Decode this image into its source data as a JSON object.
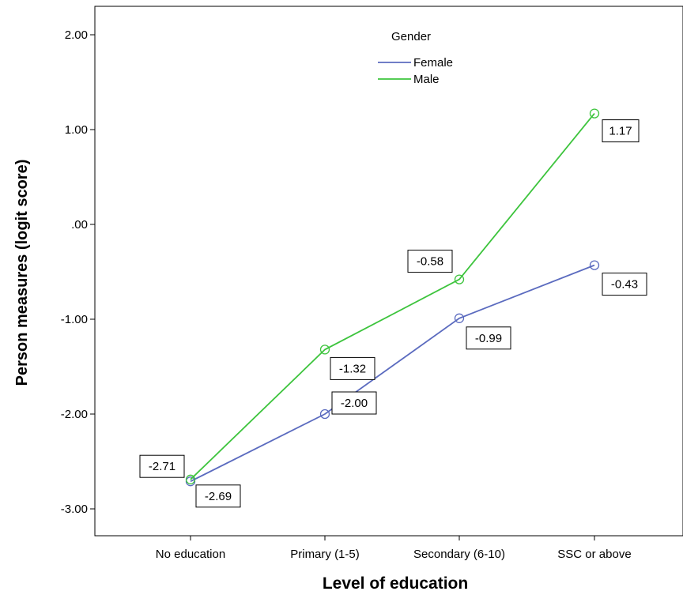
{
  "chart_data": {
    "type": "line",
    "categories": [
      "No education",
      "Primary (1-5)",
      "Secondary (6-10)",
      "SSC or above"
    ],
    "series": [
      {
        "name": "Female",
        "values": [
          -2.71,
          -2.0,
          -0.99,
          -0.43
        ],
        "labels": [
          "-2.71",
          "-2.00",
          "-0.99",
          "-0.43"
        ],
        "color": "#5B6BBF"
      },
      {
        "name": "Male",
        "values": [
          -2.69,
          -1.32,
          -0.58,
          1.17
        ],
        "labels": [
          "-2.69",
          "-1.32",
          "-0.58",
          "1.17"
        ],
        "color": "#3DC43D"
      }
    ],
    "xlabel": "Level of education",
    "ylabel": "Person measures (logit score)",
    "ylim": [
      -3.3,
      2.35
    ],
    "yticks": [
      2.0,
      1.0,
      0.0,
      -1.0,
      -2.0,
      -3.0
    ],
    "ytick_labels": [
      "2.00",
      "1.00",
      ".00",
      "-1.00",
      "-2.00",
      "-3.00"
    ],
    "legend": {
      "title": "Gender",
      "position": "top-center"
    },
    "grid": false
  }
}
